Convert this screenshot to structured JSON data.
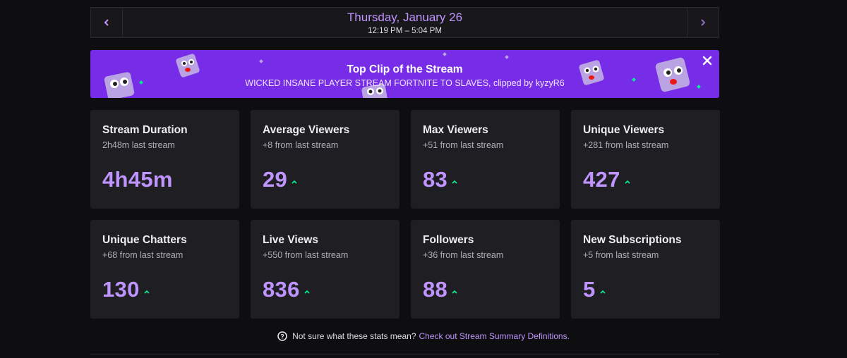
{
  "date_nav": {
    "title": "Thursday, January 26",
    "time_range": "12:19 PM – 5:04 PM",
    "prev_icon": "chevron-left-icon",
    "next_icon": "chevron-right-icon"
  },
  "top_clip": {
    "heading": "Top Clip of the Stream",
    "description": "WICKED INSANE PLAYER STREAM FORTNITE TO SLAVES, clipped by kyzyR6",
    "close_icon": "close-icon",
    "background_color": "#772ce8"
  },
  "stats": [
    {
      "title": "Stream Duration",
      "comparison": "2h48m last stream",
      "value": "4h45m",
      "trend": "none"
    },
    {
      "title": "Average Viewers",
      "comparison": "+8 from last stream",
      "value": "29",
      "trend": "up"
    },
    {
      "title": "Max Viewers",
      "comparison": "+51 from last stream",
      "value": "83",
      "trend": "up"
    },
    {
      "title": "Unique Viewers",
      "comparison": "+281 from last stream",
      "value": "427",
      "trend": "up"
    },
    {
      "title": "Unique Chatters",
      "comparison": "+68 from last stream",
      "value": "130",
      "trend": "up"
    },
    {
      "title": "Live Views",
      "comparison": "+550 from last stream",
      "value": "836",
      "trend": "up"
    },
    {
      "title": "Followers",
      "comparison": "+36 from last stream",
      "value": "88",
      "trend": "up"
    },
    {
      "title": "New Subscriptions",
      "comparison": "+5 from last stream",
      "value": "5",
      "trend": "up"
    }
  ],
  "footer": {
    "question": "Not sure what these stats mean?",
    "link_text": "Check out Stream Summary Definitions.",
    "help_icon": "help-circle-icon"
  },
  "colors": {
    "accent": "#bf94ff",
    "trend_up": "#00f593",
    "card_bg": "#1f1f23",
    "page_bg": "#0e0e10"
  }
}
